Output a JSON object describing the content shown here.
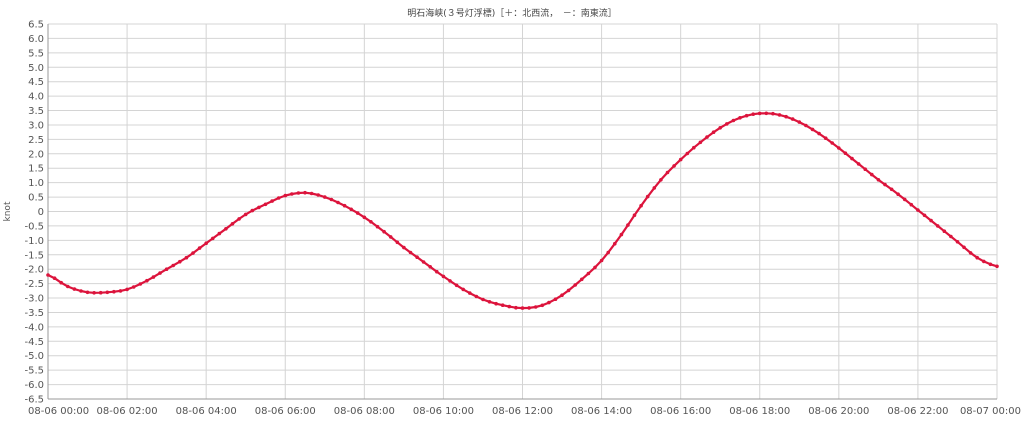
{
  "chart_data": {
    "type": "line",
    "title": "明石海峡(３号灯浮標)［＋：北西流，　－：南東流］",
    "xlabel": "",
    "ylabel": "knot",
    "ylim": [
      -6.5,
      6.5
    ],
    "ytick_step": 0.5,
    "xlim_hours": [
      0,
      24
    ],
    "grid": true,
    "x_tick_labels": [
      "08-06 00:00",
      "08-06 02:00",
      "08-06 04:00",
      "08-06 06:00",
      "08-06 08:00",
      "08-06 10:00",
      "08-06 12:00",
      "08-06 14:00",
      "08-06 16:00",
      "08-06 18:00",
      "08-06 20:00",
      "08-06 22:00",
      "08-07 00:00"
    ],
    "series": [
      {
        "color": "#dc143c",
        "x_hours": [
          0,
          0.5,
          1,
          1.5,
          2,
          2.5,
          3,
          3.5,
          4,
          4.5,
          5,
          5.5,
          6,
          6.5,
          7,
          7.5,
          8,
          8.5,
          9,
          9.5,
          10,
          10.5,
          11,
          11.5,
          12,
          12.5,
          13,
          13.5,
          14,
          14.5,
          15,
          15.5,
          16,
          16.5,
          17,
          17.5,
          18,
          18.5,
          19,
          19.5,
          20,
          20.5,
          21,
          21.5,
          22,
          22.5,
          23,
          23.5,
          24
        ],
        "values": [
          -2.2,
          -2.6,
          -2.8,
          -2.8,
          -2.7,
          -2.4,
          -2.0,
          -1.6,
          -1.1,
          -0.6,
          -0.1,
          0.25,
          0.55,
          0.65,
          0.5,
          0.2,
          -0.2,
          -0.7,
          -1.25,
          -1.75,
          -2.25,
          -2.7,
          -3.05,
          -3.25,
          -3.35,
          -3.25,
          -2.9,
          -2.35,
          -1.7,
          -0.8,
          0.2,
          1.1,
          1.8,
          2.4,
          2.9,
          3.25,
          3.4,
          3.35,
          3.1,
          2.7,
          2.2,
          1.65,
          1.1,
          0.6,
          0.05,
          -0.5,
          -1.05,
          -1.6,
          -1.9
        ]
      }
    ]
  }
}
